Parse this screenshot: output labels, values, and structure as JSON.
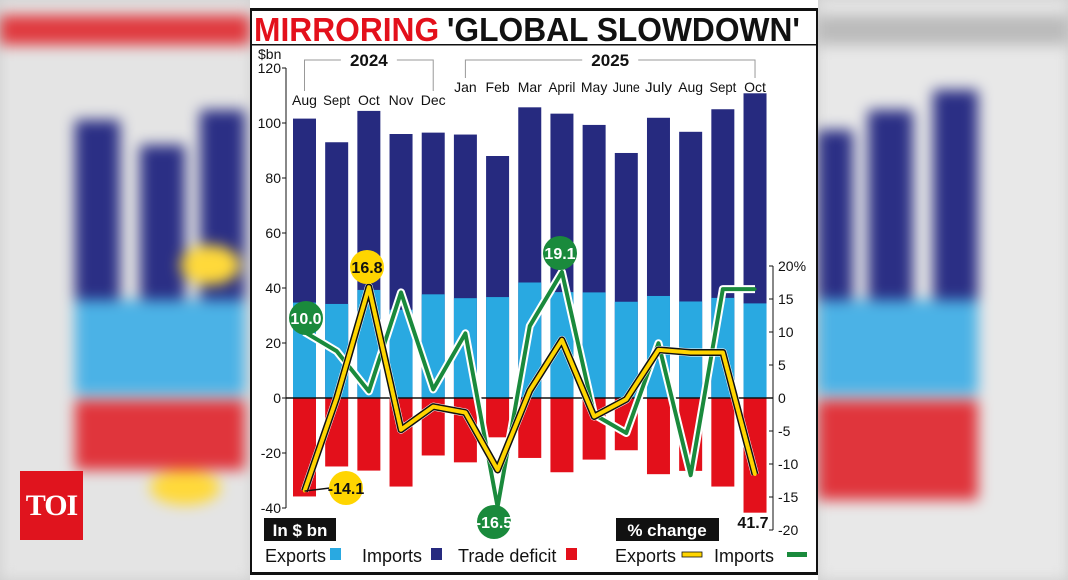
{
  "title": {
    "part1": "MIRRORING",
    "part2": "'GLOBAL SLOWDOWN'"
  },
  "logo": "TOI",
  "colors": {
    "exports_bar": "#29a9e1",
    "imports_bar": "#262a7f",
    "deficit_bar": "#e3101b",
    "exports_line": "#ffd500",
    "imports_line": "#1a8a3c",
    "title_red": "#e3101b"
  },
  "chart_data": {
    "type": "bar",
    "years": [
      {
        "label": "2024",
        "months": [
          "Aug",
          "Sept",
          "Oct",
          "Nov",
          "Dec"
        ]
      },
      {
        "label": "2025",
        "months": [
          "Jan",
          "Feb",
          "Mar",
          "April",
          "May",
          "June",
          "July",
          "Aug",
          "Sept",
          "Oct"
        ]
      }
    ],
    "categories": [
      "Aug",
      "Sept",
      "Oct",
      "Nov",
      "Dec",
      "Jan",
      "Feb",
      "Mar",
      "April",
      "May",
      "June",
      "July",
      "Aug",
      "Sept",
      "Oct"
    ],
    "left_axis": {
      "unit_label": "$bn",
      "ylim": [
        -40,
        120
      ],
      "ticks": [
        "120",
        "100",
        "80",
        "60",
        "40",
        "20",
        "0",
        "-20",
        "-40"
      ],
      "legend_title": "In $ bn"
    },
    "right_axis": {
      "ylim": [
        -20,
        20
      ],
      "ticks": [
        "20%",
        "15",
        "10",
        "5",
        "0",
        "-5",
        "-10",
        "-15",
        "-20"
      ],
      "legend_title": "% change"
    },
    "series": [
      {
        "name": "Exports",
        "kind": "bar",
        "axis": "left",
        "values": [
          34.7,
          34.2,
          39.3,
          32.1,
          37.7,
          36.3,
          36.7,
          42.0,
          38.5,
          38.4,
          35.0,
          37.1,
          35.1,
          36.4,
          34.4
        ]
      },
      {
        "name": "Imports",
        "kind": "bar",
        "axis": "left",
        "values": [
          101.6,
          93.0,
          104.4,
          96.0,
          96.5,
          95.8,
          88.0,
          105.7,
          103.4,
          99.3,
          89.1,
          101.9,
          96.8,
          105.0,
          110.8
        ]
      },
      {
        "name": "Trade deficit",
        "kind": "bar",
        "axis": "left",
        "values": [
          -35.8,
          -24.9,
          -26.4,
          -32.2,
          -20.9,
          -23.4,
          -14.3,
          -21.8,
          -27.0,
          -22.4,
          -19.0,
          -27.7,
          -26.5,
          -32.2,
          -41.7
        ]
      },
      {
        "name": "Exports",
        "kind": "line",
        "axis": "right",
        "values": [
          -14.1,
          0.0,
          16.8,
          -4.8,
          -1.3,
          -2.2,
          -10.9,
          1.1,
          8.8,
          -2.8,
          -0.2,
          7.3,
          6.9,
          6.9,
          -11.6
        ]
      },
      {
        "name": "Imports",
        "kind": "line",
        "axis": "right",
        "values": [
          10.0,
          7.1,
          1.0,
          16.0,
          1.3,
          9.8,
          -16.5,
          10.9,
          19.1,
          -2.5,
          -5.3,
          8.3,
          -11.7,
          16.5,
          16.5
        ]
      }
    ],
    "annotations": [
      {
        "text": "10.0",
        "series": "Imports line",
        "index": 0
      },
      {
        "text": "16.8",
        "series": "Exports line",
        "index": 2
      },
      {
        "text": "19.1",
        "series": "Imports line",
        "index": 8
      },
      {
        "text": "-14.1",
        "series": "Exports line",
        "index": 0
      },
      {
        "text": "-16.5",
        "series": "Imports line",
        "index": 6
      },
      {
        "text": "41.7",
        "series": "Trade deficit",
        "index": 14
      }
    ],
    "legend": {
      "bars": [
        "Exports",
        "Imports",
        "Trade deficit"
      ],
      "lines": [
        "Exports",
        "Imports"
      ],
      "placement": "bottom"
    }
  }
}
